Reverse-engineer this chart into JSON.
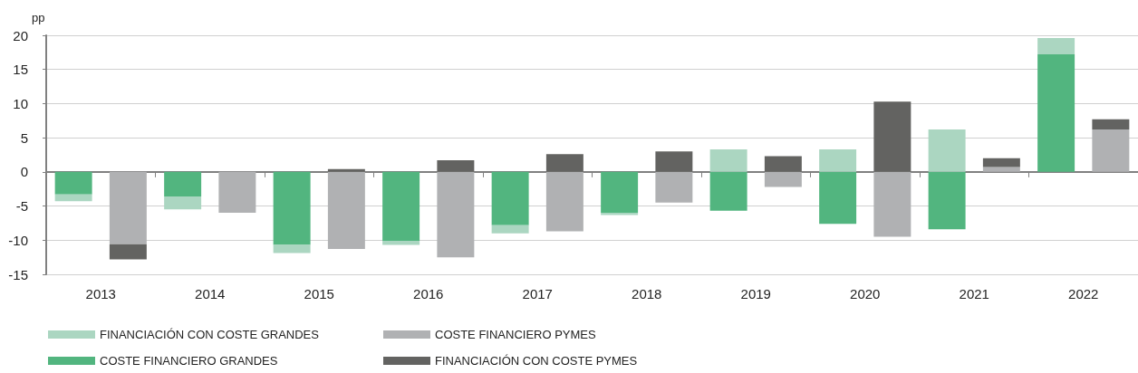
{
  "chart_data": {
    "type": "bar",
    "ylabel": "pp",
    "stacked": true,
    "categories": [
      "2013",
      null,
      "2014",
      null,
      "2015",
      null,
      "2016",
      null,
      "2017",
      null,
      "2018",
      null,
      "2019",
      null,
      "2020",
      null,
      "2021",
      null,
      "2022",
      null
    ],
    "series": [
      {
        "name": "COSTE FINANCIERO GRANDES",
        "color": "#52b57f",
        "values": [
          -3.3,
          null,
          -3.6,
          null,
          -10.7,
          null,
          -10.1,
          null,
          -7.8,
          null,
          -6.0,
          null,
          -5.7,
          null,
          -7.6,
          null,
          -8.4,
          null,
          17.2,
          null
        ]
      },
      {
        "name": "FINANCIACIÓN CON COSTE GRANDES",
        "color": "#abd6c1",
        "values": [
          -1.0,
          null,
          -1.9,
          null,
          -1.2,
          null,
          -0.6,
          null,
          -1.2,
          null,
          -0.3,
          null,
          3.3,
          null,
          3.3,
          null,
          6.2,
          null,
          2.4,
          null
        ]
      },
      {
        "name": "COSTE FINANCIERO PYMES",
        "color": "#b0b1b3",
        "values": [
          null,
          -10.6,
          null,
          -6.0,
          null,
          -11.3,
          null,
          -12.5,
          null,
          -8.7,
          null,
          -4.5,
          null,
          -2.2,
          null,
          -9.5,
          null,
          0.7,
          null,
          6.2
        ]
      },
      {
        "name": "FINANCIACIÓN CON COSTE PYMES",
        "color": "#636361",
        "values": [
          null,
          -2.2,
          null,
          0,
          null,
          0.4,
          null,
          1.7,
          null,
          2.6,
          null,
          3.0,
          null,
          2.3,
          null,
          10.3,
          null,
          1.3,
          null,
          1.5
        ]
      }
    ],
    "ylim": [
      -15,
      20
    ],
    "yticks": [
      -15,
      -10,
      -5,
      0,
      5,
      10,
      15,
      20
    ],
    "grid": "y",
    "legend": "bottom left"
  }
}
